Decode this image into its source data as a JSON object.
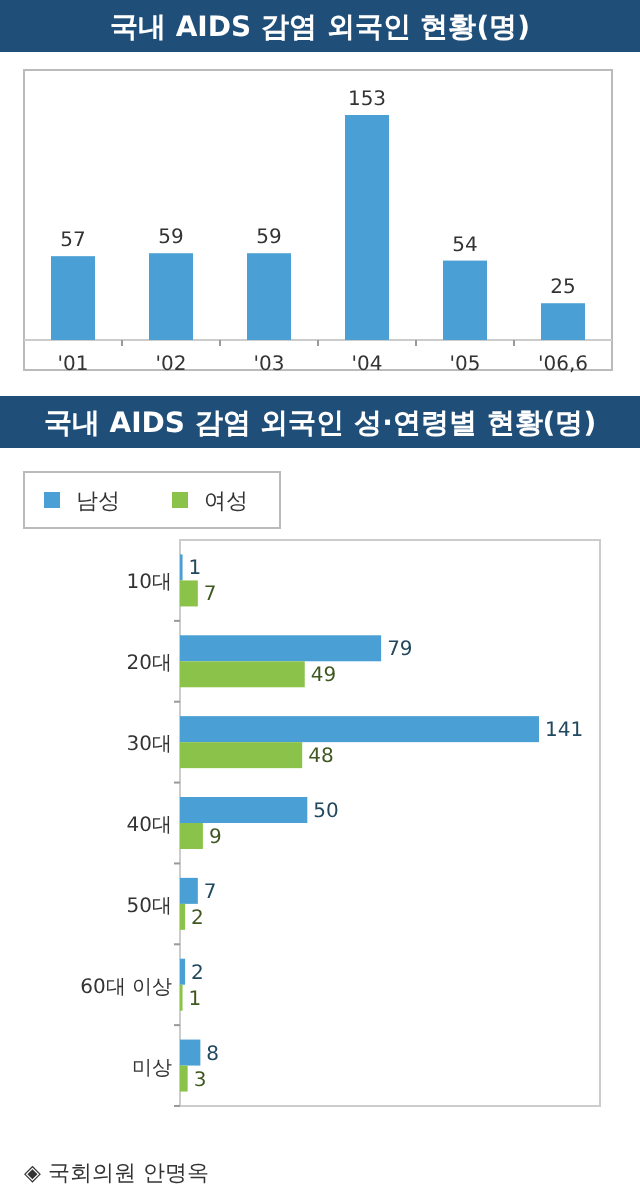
{
  "chart_data": [
    {
      "type": "bar",
      "title": "국내 AIDS 감염 외국인 현황(명)",
      "categories": [
        "'01",
        "'02",
        "'03",
        "'04",
        "'05",
        "'06,6"
      ],
      "values": [
        57,
        59,
        59,
        153,
        54,
        25
      ],
      "color": "#4a9fd4",
      "data_labels": true
    },
    {
      "type": "bar",
      "orientation": "horizontal",
      "title": "국내 AIDS 감염 외국인 성·연령별 현황(명)",
      "categories": [
        "10대",
        "20대",
        "30대",
        "40대",
        "50대",
        "60대 이상",
        "미상"
      ],
      "series": [
        {
          "name": "남성",
          "color": "#4a9fd4",
          "values": [
            1,
            79,
            141,
            50,
            7,
            2,
            8
          ]
        },
        {
          "name": "여성",
          "color": "#8bc34a",
          "values": [
            7,
            49,
            48,
            9,
            2,
            1,
            3
          ]
        }
      ],
      "legend": "top left",
      "data_labels": true,
      "annotations": [
        "◈ 국회의원 안명옥"
      ]
    }
  ]
}
